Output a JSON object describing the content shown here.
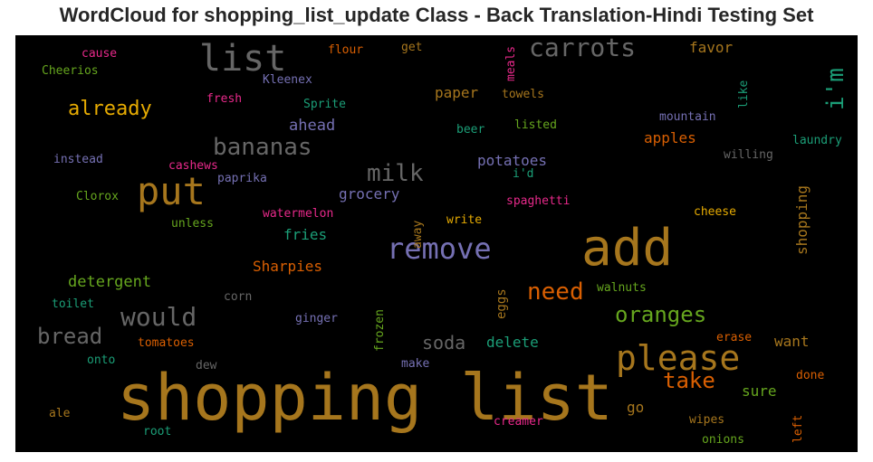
{
  "title": "WordCloud for shopping_list_update Class - Back Translation-Hindi Testing Set",
  "colors": {
    "background": "#000000",
    "title": "#262626",
    "palette": [
      "#a6761d",
      "#666666",
      "#e6ab02",
      "#7570b3",
      "#d95f02",
      "#1b9e77",
      "#66a61e",
      "#e7298a"
    ]
  },
  "words": [
    "shopping list",
    "add",
    "put",
    "remove",
    "please",
    "list",
    "carrots",
    "bananas",
    "milk",
    "would",
    "bread",
    "need",
    "oranges",
    "take",
    "already",
    "i'm",
    "detergent",
    "Sharpies",
    "soda",
    "delete",
    "apples",
    "potatoes",
    "grocery",
    "fries",
    "ahead",
    "paper",
    "favor",
    "sure",
    "want",
    "shopping",
    "eggs",
    "go",
    "cause",
    "flour",
    "get",
    "meals",
    "Cheerios",
    "Kleenex",
    "fresh",
    "Sprite",
    "towels",
    "like",
    "mountain",
    "beer",
    "listed",
    "laundry",
    "instead",
    "cashews",
    "paprika",
    "i'd",
    "willing",
    "Clorox",
    "spaghetti",
    "away",
    "cheese",
    "unless",
    "watermelon",
    "write",
    "frozen",
    "walnuts",
    "toilet",
    "corn",
    "ginger",
    "tomatoes",
    "onto",
    "erase",
    "dew",
    "make",
    "done",
    "left",
    "ale",
    "creamer",
    "wipes",
    "root",
    "onions"
  ]
}
